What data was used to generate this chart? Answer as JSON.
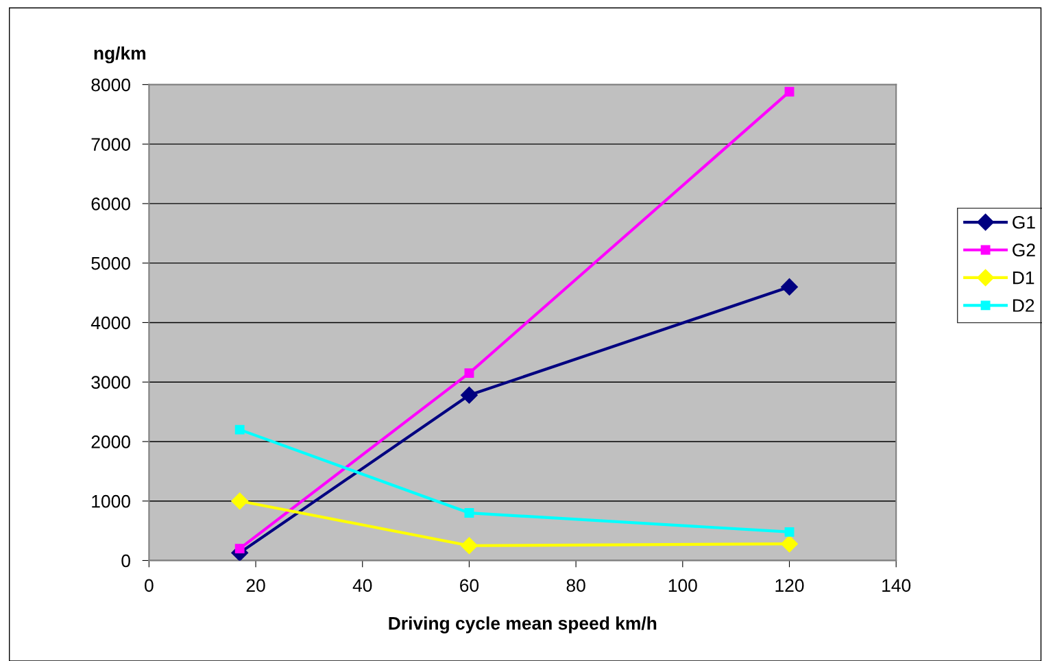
{
  "chart_data": {
    "type": "line",
    "xlabel": "Driving cycle mean speed km/h",
    "ylabel": "ng/km",
    "x": [
      17,
      60,
      120
    ],
    "series": [
      {
        "name": "G1",
        "color": "#000080",
        "marker": "diamond",
        "values": [
          130,
          2780,
          4600
        ]
      },
      {
        "name": "G2",
        "color": "#ff00ff",
        "marker": "square",
        "values": [
          200,
          3150,
          7880
        ]
      },
      {
        "name": "D1",
        "color": "#ffff00",
        "marker": "diamond",
        "values": [
          1000,
          250,
          280
        ]
      },
      {
        "name": "D2",
        "color": "#00ffff",
        "marker": "square",
        "values": [
          2200,
          800,
          480
        ]
      }
    ],
    "xlim": [
      0,
      140
    ],
    "xticks": [
      0,
      20,
      40,
      60,
      80,
      100,
      120,
      140
    ],
    "ylim": [
      0,
      8000
    ],
    "yticks": [
      0,
      1000,
      2000,
      3000,
      4000,
      5000,
      6000,
      7000,
      8000
    ],
    "grid": "y",
    "legend": "right",
    "line_style": "solid"
  }
}
